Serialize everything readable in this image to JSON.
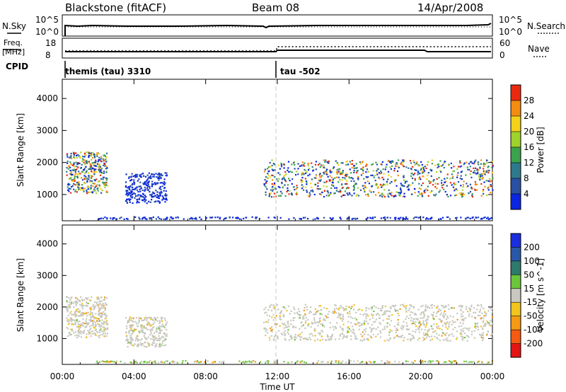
{
  "header": {
    "station": "Blackstone (fitACF)",
    "beam": "Beam 08",
    "date": "14/Apr/2008"
  },
  "top_panels": {
    "nsky_label": "N.Sky",
    "nsky_ticks": [
      "10^5",
      "10^0"
    ],
    "nsearch_label": "N.Search",
    "nsearch_ticks": [
      "10^5",
      "10^0"
    ],
    "freq_label_1": "Freq.",
    "freq_label_2": "[MHz]",
    "freq_ticks": [
      "18",
      "8"
    ],
    "nave_label": "Nave",
    "nave_ticks": [
      "60",
      "0"
    ],
    "cpid_label": "CPID",
    "cpid_segments": [
      {
        "start_hour": 0.0,
        "text": "themis (tau) 3310"
      },
      {
        "start_hour": 12.0,
        "text": "tau -502"
      }
    ]
  },
  "chart_data": [
    {
      "type": "heatmap",
      "title": "",
      "ylabel": "Slant Range [km]",
      "ylim": [
        180,
        4600
      ],
      "yticks": [
        "1000",
        "2000",
        "3000",
        "4000"
      ],
      "xlim": [
        0,
        24
      ],
      "colorbar": {
        "label": "Power [dB]",
        "levels": [
          "4",
          "8",
          "12",
          "16",
          "20",
          "24",
          "28"
        ],
        "colors": [
          "#0a26e0",
          "#2950a3",
          "#2e7a8c",
          "#3aa34b",
          "#9fd22a",
          "#f5d21a",
          "#f58c12",
          "#ea2a10"
        ]
      },
      "regions": [
        {
          "t0": 0.2,
          "t1": 2.5,
          "r0": 1050,
          "r1": 2350,
          "level": "mixed"
        },
        {
          "t0": 3.5,
          "t1": 5.8,
          "r0": 750,
          "r1": 1700,
          "level": "low"
        },
        {
          "t0": 11.2,
          "t1": 24.0,
          "r0": 950,
          "r1": 2100,
          "level": "mixed"
        },
        {
          "t0": 1.8,
          "t1": 24.0,
          "r0": 250,
          "r1": 320,
          "level": "low"
        }
      ]
    },
    {
      "type": "heatmap",
      "title": "",
      "ylabel": "Slant Range [km]",
      "xlabel": "Time UT",
      "ylim": [
        180,
        4600
      ],
      "yticks": [
        "1000",
        "2000",
        "3000",
        "4000"
      ],
      "xlim": [
        0,
        24
      ],
      "xticks": [
        "00:00",
        "04:00",
        "08:00",
        "12:00",
        "16:00",
        "20:00",
        "00:00"
      ],
      "colorbar": {
        "label": "Velocity [m s^-1]",
        "levels": [
          "-200",
          "-100",
          "-50",
          "-15",
          "15",
          "50",
          "100",
          "200"
        ],
        "colors": [
          "#e41414",
          "#f55a10",
          "#f59a14",
          "#f2c41e",
          "#c8c8c0",
          "#6cc53c",
          "#2e7a6c",
          "#2a58a8",
          "#1a2ee0"
        ]
      },
      "regions": [
        {
          "t0": 0.2,
          "t1": 2.5,
          "r0": 1050,
          "r1": 2350,
          "level": "ground"
        },
        {
          "t0": 3.5,
          "t1": 5.8,
          "r0": 750,
          "r1": 1700,
          "level": "ground"
        },
        {
          "t0": 11.2,
          "t1": 24.0,
          "r0": 950,
          "r1": 2100,
          "level": "ground"
        },
        {
          "t0": 1.8,
          "t1": 24.0,
          "r0": 250,
          "r1": 320,
          "level": "low"
        }
      ]
    }
  ]
}
